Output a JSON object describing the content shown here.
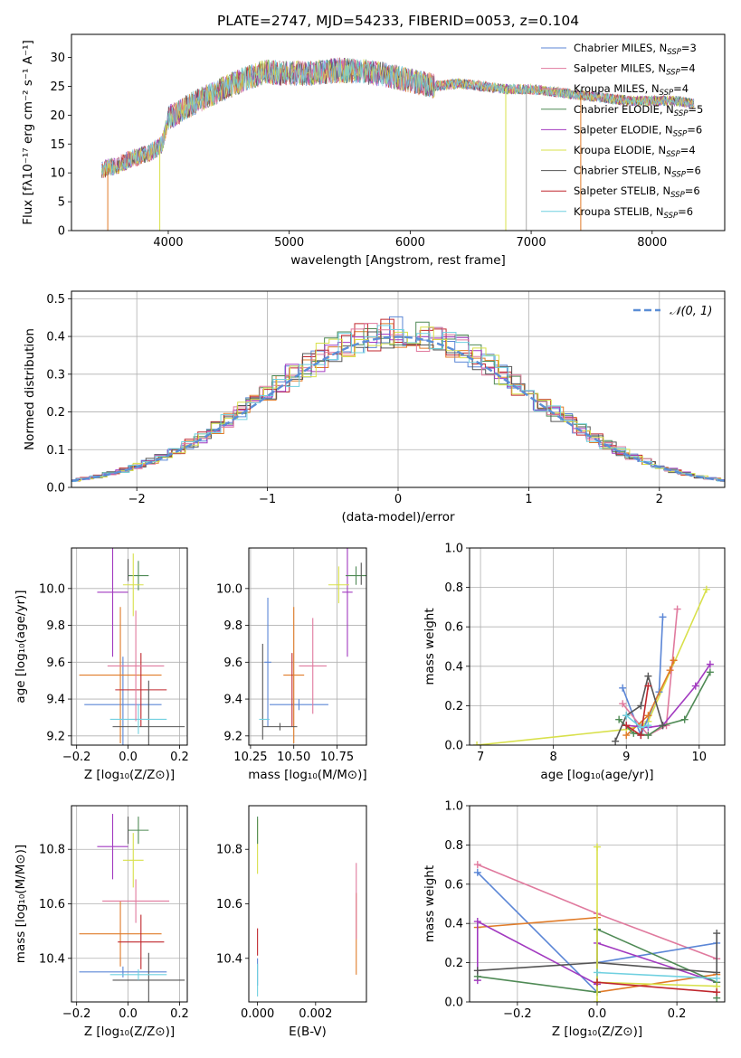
{
  "figure_title": "PLATE=2747, MJD=54233, FIBERID=0053, z=0.104",
  "colors": {
    "Chabrier MILES": "#5b86d6",
    "Salpeter MILES": "#e07a9e",
    "Kroupa MILES": "#e07a9e",
    "Chabrier ELODIE": "#4f8a55",
    "Salpeter ELODIE": "#a23ac0",
    "Kroupa ELODIE": "#d8e04a",
    "Chabrier STELIB": "#555555",
    "Salpeter STELIB": "#c0272d",
    "Kroupa STELIB": "#6fd0e0",
    "orange": "#e07b28",
    "gauss": "#5b8ed6"
  },
  "chart_data": [
    {
      "id": "spectrum",
      "type": "line",
      "title": "",
      "xlabel": "wavelength [Angstrom, rest frame]",
      "ylabel": "Flux [fλ10⁻¹⁷ erg cm⁻² s⁻¹ A⁻¹]",
      "xlim": [
        3200,
        8600
      ],
      "ylim": [
        0,
        34
      ],
      "xticks": [
        4000,
        5000,
        6000,
        7000,
        8000
      ],
      "yticks": [
        0,
        5,
        10,
        15,
        20,
        25,
        30
      ],
      "grid": false,
      "legend_position": "right",
      "legend": [
        {
          "label": "Chabrier MILES, N",
          "sub": "SSP",
          "suffix": "=3",
          "color": "#5b86d6"
        },
        {
          "label": "Salpeter MILES, N",
          "sub": "SSP",
          "suffix": "=4",
          "color": "#e07a9e"
        },
        {
          "label": "Kroupa MILES, N",
          "sub": "SSP",
          "suffix": "=4",
          "color": "#e07a9e"
        },
        {
          "label": "Chabrier ELODIE, N",
          "sub": "SSP",
          "suffix": "=5",
          "color": "#4f8a55"
        },
        {
          "label": "Salpeter ELODIE, N",
          "sub": "SSP",
          "suffix": "=6",
          "color": "#a23ac0"
        },
        {
          "label": "Kroupa ELODIE, N",
          "sub": "SSP",
          "suffix": "=4",
          "color": "#d8e04a"
        },
        {
          "label": "Chabrier STELIB, N",
          "sub": "SSP",
          "suffix": "=6",
          "color": "#555555"
        },
        {
          "label": "Salpeter STELIB, N",
          "sub": "SSP",
          "suffix": "=6",
          "color": "#c0272d"
        },
        {
          "label": "Kroupa STELIB, N",
          "sub": "SSP",
          "suffix": "=6",
          "color": "#6fd0e0"
        }
      ],
      "continuum": [
        [
          3450,
          10.5
        ],
        [
          3600,
          11.5
        ],
        [
          3700,
          12.5
        ],
        [
          3850,
          13.5
        ],
        [
          3950,
          15
        ],
        [
          4000,
          19.5
        ],
        [
          4200,
          22
        ],
        [
          4400,
          24
        ],
        [
          4600,
          26
        ],
        [
          4800,
          27.5
        ],
        [
          5000,
          27.2
        ],
        [
          5200,
          27.3
        ],
        [
          5400,
          27.8
        ],
        [
          5600,
          27.6
        ],
        [
          5800,
          27
        ],
        [
          6000,
          26
        ],
        [
          6200,
          25
        ],
        [
          6400,
          25.5
        ],
        [
          6600,
          25
        ],
        [
          6800,
          24.5
        ],
        [
          7000,
          24.5
        ],
        [
          7200,
          24
        ],
        [
          7400,
          23.5
        ],
        [
          7600,
          23
        ],
        [
          7800,
          22.5
        ],
        [
          8000,
          22.5
        ],
        [
          8200,
          22.5
        ],
        [
          8350,
          22
        ]
      ],
      "series_colors": [
        "#5b86d6",
        "#e07b28",
        "#4f8a55",
        "#c0272d",
        "#a23ac0",
        "#555555",
        "#e07a9e",
        "#d8e04a",
        "#6fd0e0"
      ],
      "dips": [
        {
          "x": 3500,
          "color": "#e07b28"
        },
        {
          "x": 3930,
          "color": "#d8e04a"
        },
        {
          "x": 6790,
          "color": "#d8e04a"
        },
        {
          "x": 6960,
          "color": "#aaaaaa"
        },
        {
          "x": 7410,
          "color": "#e07b28"
        }
      ]
    },
    {
      "id": "residuals",
      "type": "histogram",
      "title": "",
      "xlabel": "(data-model)/error",
      "ylabel": "Normed distribution",
      "xlim": [
        -2.5,
        2.5
      ],
      "ylim": [
        0,
        0.52
      ],
      "xticks": [
        -2,
        -1,
        0,
        1,
        2
      ],
      "yticks": [
        0.0,
        0.1,
        0.2,
        0.3,
        0.4,
        0.5
      ],
      "grid": true,
      "legend_position": "top-right",
      "gauss_label": "𝒩(0, 1)",
      "bin_width": 0.1,
      "n_series": 9
    },
    {
      "id": "age_vs_Z",
      "type": "errorbar",
      "xlabel": "Z [log₁₀(Z/Z⊙)]",
      "ylabel": "age  [log₁₀(age/yr)]",
      "xlim": [
        -0.22,
        0.23
      ],
      "ylim": [
        9.15,
        10.22
      ],
      "xticks": [
        -0.2,
        0.0,
        0.2
      ],
      "yticks": [
        9.2,
        9.4,
        9.6,
        9.8,
        10.0
      ],
      "grid": true,
      "points": [
        {
          "x": -0.02,
          "xerr": 0.15,
          "y": 9.37,
          "yerr": 0.26,
          "color": "#5b86d6"
        },
        {
          "x": -0.03,
          "xerr": 0.16,
          "y": 9.53,
          "yerr": 0.37,
          "color": "#e07b28"
        },
        {
          "x": 0.05,
          "xerr": 0.1,
          "y": 9.45,
          "yerr": 0.2,
          "color": "#c0272d"
        },
        {
          "x": 0.08,
          "xerr": 0.14,
          "y": 9.25,
          "yerr": 0.25,
          "color": "#555555"
        },
        {
          "x": 0.04,
          "xerr": 0.11,
          "y": 9.29,
          "yerr": 0.08,
          "color": "#6fd0e0"
        },
        {
          "x": 0.03,
          "xerr": 0.11,
          "y": 9.58,
          "yerr": 0.3,
          "color": "#e07a9e"
        },
        {
          "x": -0.06,
          "xerr": 0.06,
          "y": 9.98,
          "yerr": 0.35,
          "color": "#a23ac0"
        },
        {
          "x": 0.04,
          "xerr": 0.04,
          "y": 10.07,
          "yerr": 0.08,
          "color": "#4f8a55"
        },
        {
          "x": 0.02,
          "xerr": 0.04,
          "y": 10.02,
          "yerr": 0.17,
          "color": "#d8e04a"
        },
        {
          "x": 0.0,
          "xerr": 0.0,
          "y": 10.1,
          "yerr": 0.06,
          "color": "#555555"
        }
      ]
    },
    {
      "id": "age_vs_mass",
      "type": "errorbar",
      "xlabel": "mass [log₁₀(M/M⊙)]",
      "ylabel": "",
      "xlim": [
        10.24,
        10.92
      ],
      "ylim": [
        9.15,
        10.22
      ],
      "xticks": [
        10.25,
        10.5,
        10.75
      ],
      "yticks": [
        9.2,
        9.4,
        9.6,
        9.8,
        10.0
      ],
      "grid": true,
      "points": [
        {
          "x": 10.35,
          "xerr": 0.02,
          "y": 9.6,
          "yerr": 0.35,
          "color": "#5b86d6"
        },
        {
          "x": 10.53,
          "xerr": 0.17,
          "y": 9.37,
          "yerr": 0.03,
          "color": "#5b86d6"
        },
        {
          "x": 10.5,
          "xerr": 0.06,
          "y": 9.53,
          "yerr": 0.37,
          "color": "#e07b28"
        },
        {
          "x": 10.49,
          "xerr": 0.0,
          "y": 9.45,
          "yerr": 0.2,
          "color": "#c0272d"
        },
        {
          "x": 10.42,
          "xerr": 0.1,
          "y": 9.25,
          "yerr": 0.02,
          "color": "#555555"
        },
        {
          "x": 10.32,
          "xerr": 0.0,
          "y": 9.44,
          "yerr": 0.26,
          "color": "#555555"
        },
        {
          "x": 10.33,
          "xerr": 0.03,
          "y": 9.29,
          "yerr": 0.0,
          "color": "#6fd0e0"
        },
        {
          "x": 10.61,
          "xerr": 0.08,
          "y": 9.58,
          "yerr": 0.26,
          "color": "#e07a9e"
        },
        {
          "x": 10.81,
          "xerr": 0.03,
          "y": 9.98,
          "yerr": 0.35,
          "color": "#a23ac0"
        },
        {
          "x": 10.86,
          "xerr": 0.06,
          "y": 10.07,
          "yerr": 0.05,
          "color": "#4f8a55"
        },
        {
          "x": 10.76,
          "xerr": 0.06,
          "y": 10.02,
          "yerr": 0.1,
          "color": "#d8e04a"
        },
        {
          "x": 10.89,
          "xerr": 0.0,
          "y": 10.08,
          "yerr": 0.06,
          "color": "#555555"
        }
      ]
    },
    {
      "id": "weight_vs_age",
      "type": "line",
      "xlabel": "age  [log₁₀(age/yr)]",
      "ylabel": "mass weight",
      "xlim": [
        6.85,
        10.35
      ],
      "ylim": [
        0.0,
        1.0
      ],
      "xticks": [
        7,
        8,
        9,
        10
      ],
      "yticks": [
        0.0,
        0.2,
        0.4,
        0.6,
        0.8,
        1.0
      ],
      "grid": true,
      "series": [
        {
          "color": "#d8e04a",
          "x": [
            6.95,
            9.0,
            9.2,
            9.3,
            10.1
          ],
          "y": [
            0.0,
            0.08,
            0.1,
            0.12,
            0.79
          ]
        },
        {
          "color": "#5b86d6",
          "x": [
            8.95,
            9.2,
            9.45,
            9.5
          ],
          "y": [
            0.29,
            0.05,
            0.27,
            0.65
          ]
        },
        {
          "color": "#e07a9e",
          "x": [
            8.95,
            9.3,
            9.55,
            9.7
          ],
          "y": [
            0.21,
            0.05,
            0.1,
            0.69
          ]
        },
        {
          "color": "#e07b28",
          "x": [
            9.0,
            9.3,
            9.6,
            9.65
          ],
          "y": [
            0.05,
            0.15,
            0.38,
            0.43
          ]
        },
        {
          "color": "#a23ac0",
          "x": [
            9.0,
            9.3,
            9.5,
            9.95,
            10.15
          ],
          "y": [
            0.1,
            0.09,
            0.1,
            0.3,
            0.41
          ]
        },
        {
          "color": "#4f8a55",
          "x": [
            8.9,
            9.1,
            9.3,
            9.5,
            9.8,
            10.15
          ],
          "y": [
            0.13,
            0.06,
            0.05,
            0.1,
            0.13,
            0.37
          ]
        },
        {
          "color": "#555555",
          "x": [
            8.85,
            9.0,
            9.2,
            9.3,
            9.5
          ],
          "y": [
            0.02,
            0.15,
            0.2,
            0.35,
            0.1
          ]
        },
        {
          "color": "#c0272d",
          "x": [
            9.0,
            9.2,
            9.3
          ],
          "y": [
            0.1,
            0.05,
            0.3
          ]
        },
        {
          "color": "#6fd0e0",
          "x": [
            9.0,
            9.2,
            9.3
          ],
          "y": [
            0.15,
            0.09,
            0.1
          ]
        }
      ]
    },
    {
      "id": "mass_vs_Z",
      "type": "errorbar",
      "xlabel": "Z [log₁₀(Z/Z⊙)]",
      "ylabel": "mass [log₁₀(M/M⊙)]",
      "xlim": [
        -0.22,
        0.23
      ],
      "ylim": [
        10.24,
        10.96
      ],
      "xticks": [
        -0.2,
        0.0,
        0.2
      ],
      "yticks": [
        10.4,
        10.6,
        10.8
      ],
      "grid": true,
      "points": [
        {
          "x": -0.02,
          "xerr": 0.17,
          "y": 10.35,
          "yerr": 0.02,
          "color": "#5b86d6"
        },
        {
          "x": -0.03,
          "xerr": 0.16,
          "y": 10.49,
          "yerr": 0.12,
          "color": "#e07b28"
        },
        {
          "x": 0.05,
          "xerr": 0.09,
          "y": 10.46,
          "yerr": 0.1,
          "color": "#c0272d"
        },
        {
          "x": 0.08,
          "xerr": 0.14,
          "y": 10.32,
          "yerr": 0.1,
          "color": "#555555"
        },
        {
          "x": 0.04,
          "xerr": 0.11,
          "y": 10.34,
          "yerr": 0.02,
          "color": "#6fd0e0"
        },
        {
          "x": 0.03,
          "xerr": 0.13,
          "y": 10.61,
          "yerr": 0.08,
          "color": "#e07a9e"
        },
        {
          "x": -0.06,
          "xerr": 0.06,
          "y": 10.81,
          "yerr": 0.12,
          "color": "#a23ac0"
        },
        {
          "x": 0.04,
          "xerr": 0.04,
          "y": 10.87,
          "yerr": 0.05,
          "color": "#4f8a55"
        },
        {
          "x": 0.02,
          "xerr": 0.04,
          "y": 10.76,
          "yerr": 0.1,
          "color": "#d8e04a"
        },
        {
          "x": 0.0,
          "xerr": 0.0,
          "y": 10.87,
          "yerr": 0.05,
          "color": "#555555"
        }
      ]
    },
    {
      "id": "mass_vs_EBV",
      "type": "errorbar",
      "xlabel": "E(B-V)",
      "ylabel": "",
      "xlim": [
        -0.0003,
        0.00375
      ],
      "ylim": [
        10.24,
        10.96
      ],
      "xticks": [
        0.0,
        0.002
      ],
      "xtick_labels": [
        "0.000",
        "0.002"
      ],
      "yticks": [
        10.4,
        10.6,
        10.8
      ],
      "grid": false,
      "points": [
        {
          "x": 0.0,
          "xerr": 0.0,
          "y": 10.35,
          "yerr": 0.05,
          "color": "#5b86d6"
        },
        {
          "x": 0.0,
          "xerr": 0.0,
          "y": 10.46,
          "yerr": 0.05,
          "color": "#c0272d"
        },
        {
          "x": 0.0,
          "xerr": 0.0,
          "y": 10.32,
          "yerr": 0.06,
          "color": "#6fd0e0"
        },
        {
          "x": 0.0,
          "xerr": 0.0,
          "y": 10.81,
          "yerr": 0.1,
          "color": "#d8e04a"
        },
        {
          "x": 0.0,
          "xerr": 0.0,
          "y": 10.87,
          "yerr": 0.05,
          "color": "#4f8a55"
        },
        {
          "x": 0.0034,
          "xerr": 0.0,
          "y": 10.49,
          "yerr": 0.15,
          "color": "#e07b28"
        },
        {
          "x": 0.0034,
          "xerr": 0.0,
          "y": 10.61,
          "yerr": 0.14,
          "color": "#e07a9e"
        }
      ]
    },
    {
      "id": "weight_vs_Z",
      "type": "line",
      "xlabel": "Z [log₁₀(Z/Z⊙)]",
      "ylabel": "mass weight",
      "xlim": [
        -0.32,
        0.32
      ],
      "ylim": [
        0.0,
        1.0
      ],
      "xticks": [
        -0.2,
        0.0,
        0.2
      ],
      "yticks": [
        0.0,
        0.2,
        0.4,
        0.6,
        0.8,
        1.0
      ],
      "grid": true,
      "series": [
        {
          "color": "#e07a9e",
          "x": [
            -0.3,
            0.0,
            0.3
          ],
          "y": [
            0.7,
            0.45,
            0.22
          ]
        },
        {
          "color": "#5b86d6",
          "x": [
            -0.3,
            0.0,
            0.0,
            0.3
          ],
          "y": [
            0.66,
            0.05,
            0.2,
            0.3
          ]
        },
        {
          "color": "#e07b28",
          "x": [
            -0.3,
            0.0,
            0.0,
            0.3
          ],
          "y": [
            0.38,
            0.43,
            0.05,
            0.14
          ]
        },
        {
          "color": "#a23ac0",
          "x": [
            -0.3,
            -0.3,
            0.0,
            0.0,
            0.3
          ],
          "y": [
            0.11,
            0.41,
            0.09,
            0.3,
            0.1
          ]
        },
        {
          "color": "#4f8a55",
          "x": [
            -0.3,
            0.0,
            0.0,
            0.3,
            0.3
          ],
          "y": [
            0.13,
            0.05,
            0.37,
            0.1,
            0.02
          ]
        },
        {
          "color": "#555555",
          "x": [
            -0.3,
            0.0,
            0.3,
            0.3
          ],
          "y": [
            0.16,
            0.2,
            0.15,
            0.35
          ]
        },
        {
          "color": "#d8e04a",
          "x": [
            0.0,
            0.0,
            0.0,
            0.3
          ],
          "y": [
            0.79,
            0.0,
            0.1,
            0.08
          ]
        },
        {
          "color": "#c0272d",
          "x": [
            0.0,
            0.3
          ],
          "y": [
            0.1,
            0.05
          ]
        },
        {
          "color": "#6fd0e0",
          "x": [
            0.0,
            0.3
          ],
          "y": [
            0.15,
            0.12
          ]
        }
      ]
    }
  ]
}
